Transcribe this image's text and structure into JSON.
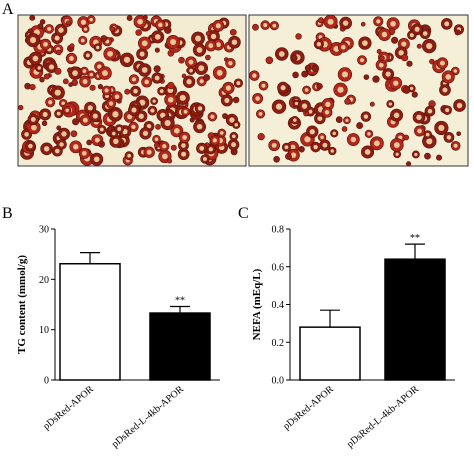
{
  "panel_labels": [
    "A",
    "B",
    "C"
  ],
  "chart_data": [
    {
      "type": "bar",
      "ylabel": "TG content (mmol/g)",
      "categories": [
        "pDsRed-APOR",
        "pDsRed-L-4kb-APOR"
      ],
      "values": [
        23.1,
        13.3
      ],
      "errors": [
        2.2,
        1.3
      ],
      "significance": [
        null,
        "**"
      ],
      "colors": [
        "#ffffff",
        "#000000"
      ],
      "ylim": [
        0,
        30
      ],
      "yticks": [
        0,
        10,
        20,
        30
      ]
    },
    {
      "type": "bar",
      "ylabel": "NEFA (mEq/L)",
      "categories": [
        "pDsRed-APOR",
        "pDsRed-L-4kb-APOR"
      ],
      "values": [
        0.28,
        0.64
      ],
      "errors": [
        0.09,
        0.08
      ],
      "significance": [
        null,
        "**"
      ],
      "colors": [
        "#ffffff",
        "#000000"
      ],
      "ylim": [
        0,
        0.8
      ],
      "yticks": [
        {
          "value": 0,
          "label": "0.0"
        },
        0.2,
        0.4,
        0.6,
        0.8
      ]
    }
  ]
}
